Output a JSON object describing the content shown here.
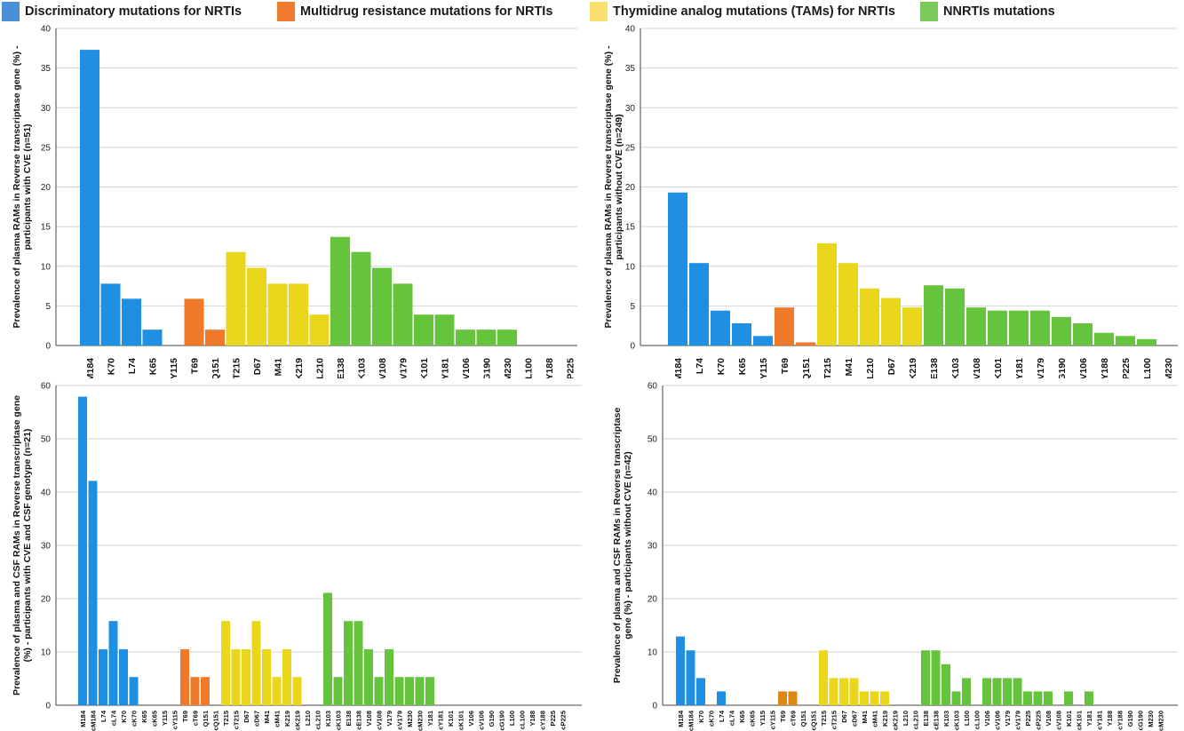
{
  "colors": {
    "discriminatory": "#1f8fe3",
    "multidrug": "#f07a2a",
    "multidrug_alt": "#de8a12",
    "tams": "#ead71c",
    "nnrti": "#66c43c",
    "legend_disc": "#4a90d9",
    "legend_multi": "#f07b2e",
    "legend_tams": "#f8df6e",
    "legend_nnrti": "#7cc95a"
  },
  "legend": [
    {
      "label": "Discriminatory mutations for NRTIs",
      "color_key": "legend_disc"
    },
    {
      "label": "Multidrug resistance mutations for NRTIs",
      "color_key": "legend_multi"
    },
    {
      "label": "Thymidine analog mutations (TAMs) for NRTIs",
      "color_key": "legend_tams"
    },
    {
      "label": "NNRTIs mutations",
      "color_key": "legend_nnrti"
    }
  ],
  "chart_data": [
    {
      "type": "bar",
      "ylabel": [
        "Prevalence of plasma RAMs in Reverse transcriptase gene (%) -",
        "participants with CVE (n=51)"
      ],
      "ylim": [
        0,
        40
      ],
      "yticks": [
        0,
        5,
        10,
        15,
        20,
        25,
        30,
        35,
        40
      ],
      "grid": true,
      "categories": [
        "M184",
        "K70",
        "L74",
        "K65",
        "Y115",
        "T69",
        "Q151",
        "T215",
        "D67",
        "M41",
        "K219",
        "L210",
        "E138",
        "K103",
        "V108",
        "V179",
        "K101",
        "Y181",
        "V106",
        "G190",
        "M230",
        "L100",
        "Y188",
        "P225"
      ],
      "values": [
        37.3,
        7.8,
        5.9,
        2.0,
        0,
        5.9,
        2.0,
        11.8,
        9.8,
        7.8,
        7.8,
        3.9,
        13.7,
        11.8,
        9.8,
        7.8,
        3.9,
        3.9,
        2.0,
        2.0,
        2.0,
        0,
        0,
        0
      ],
      "groups": [
        "discriminatory",
        "discriminatory",
        "discriminatory",
        "discriminatory",
        "discriminatory",
        "multidrug",
        "multidrug",
        "tams",
        "tams",
        "tams",
        "tams",
        "tams",
        "nnrti",
        "nnrti",
        "nnrti",
        "nnrti",
        "nnrti",
        "nnrti",
        "nnrti",
        "nnrti",
        "nnrti",
        "nnrti",
        "nnrti",
        "nnrti"
      ]
    },
    {
      "type": "bar",
      "ylabel": [
        "Prevalence of plasma RAMs in Reverse transcriptase gene (%) -",
        "participants without CVE (n=249)"
      ],
      "ylim": [
        0,
        40
      ],
      "yticks": [
        0,
        5,
        10,
        15,
        20,
        25,
        30,
        35,
        40
      ],
      "grid": true,
      "categories": [
        "M184",
        "L74",
        "K70",
        "K65",
        "Y115",
        "T69",
        "Q151",
        "T215",
        "M41",
        "L210",
        "D67",
        "K219",
        "E138",
        "K103",
        "V108",
        "K101",
        "Y181",
        "V179",
        "G190",
        "V106",
        "Y188",
        "P225",
        "L100",
        "M230"
      ],
      "values": [
        19.3,
        10.4,
        4.4,
        2.8,
        1.2,
        4.8,
        0.4,
        12.9,
        10.4,
        7.2,
        6.0,
        4.8,
        7.6,
        7.2,
        4.8,
        4.4,
        4.4,
        4.4,
        3.6,
        2.8,
        1.6,
        1.2,
        0.8,
        0
      ],
      "groups": [
        "discriminatory",
        "discriminatory",
        "discriminatory",
        "discriminatory",
        "discriminatory",
        "multidrug",
        "multidrug",
        "tams",
        "tams",
        "tams",
        "tams",
        "tams",
        "nnrti",
        "nnrti",
        "nnrti",
        "nnrti",
        "nnrti",
        "nnrti",
        "nnrti",
        "nnrti",
        "nnrti",
        "nnrti",
        "nnrti",
        "nnrti"
      ]
    },
    {
      "type": "bar",
      "ylabel": [
        "Prevalence of plasma and CSF RAMs in Reverse transcriptase gene",
        "(%) - participants with CVE and CSF genotype (n=21)"
      ],
      "ylim": [
        0,
        60
      ],
      "yticks": [
        0,
        10,
        20,
        30,
        40,
        50,
        60
      ],
      "grid": true,
      "categories": [
        "M184",
        "cM184",
        "L74",
        "cL74",
        "K70",
        "cK70",
        "K65",
        "cK65",
        "Y115",
        "cY115",
        "T69",
        "cT69",
        "Q151",
        "cQ151",
        "T215",
        "cT215",
        "D67",
        "cD67",
        "M41",
        "cM41",
        "K219",
        "cK219",
        "L210",
        "cL210",
        "K103",
        "cK103",
        "E138",
        "cE138",
        "V108",
        "cV108",
        "V179",
        "cV179",
        "M230",
        "cM230",
        "Y181",
        "cY181",
        "K101",
        "cK101",
        "V106",
        "cV106",
        "G190",
        "cG190",
        "L100",
        "cL100",
        "Y188",
        "cY188",
        "P225",
        "cP225"
      ],
      "values": [
        57.9,
        42.1,
        10.5,
        15.8,
        10.5,
        5.3,
        0,
        0,
        0,
        0,
        10.5,
        5.3,
        5.3,
        0,
        15.8,
        10.5,
        10.5,
        15.8,
        10.5,
        5.3,
        10.5,
        5.3,
        0,
        0,
        21.1,
        5.3,
        15.8,
        15.8,
        10.5,
        5.3,
        10.5,
        5.3,
        5.3,
        5.3,
        5.3,
        0,
        0,
        0,
        0,
        0,
        0,
        0,
        0,
        0,
        0,
        0,
        0,
        0
      ],
      "groups": [
        "discriminatory",
        "discriminatory",
        "discriminatory",
        "discriminatory",
        "discriminatory",
        "discriminatory",
        "discriminatory",
        "discriminatory",
        "discriminatory",
        "discriminatory",
        "multidrug",
        "multidrug",
        "multidrug",
        "multidrug",
        "tams",
        "tams",
        "tams",
        "tams",
        "tams",
        "tams",
        "tams",
        "tams",
        "tams",
        "tams",
        "nnrti",
        "nnrti",
        "nnrti",
        "nnrti",
        "nnrti",
        "nnrti",
        "nnrti",
        "nnrti",
        "nnrti",
        "nnrti",
        "nnrti",
        "nnrti",
        "nnrti",
        "nnrti",
        "nnrti",
        "nnrti",
        "nnrti",
        "nnrti",
        "nnrti",
        "nnrti",
        "nnrti",
        "nnrti",
        "nnrti",
        "nnrti"
      ]
    },
    {
      "type": "bar",
      "ylabel": [
        "Prevalence of plasma and CSF RAMs in Reverse transcriptase",
        "gene (%) - participants without CVE (n=42)"
      ],
      "ylim": [
        0,
        60
      ],
      "yticks": [
        0,
        10,
        20,
        30,
        40,
        50,
        60
      ],
      "grid": true,
      "categories": [
        "M184",
        "cM184",
        "K70",
        "cK70",
        "L74",
        "cL74",
        "K65",
        "cK65",
        "Y115",
        "cY115",
        "T69",
        "cT69",
        "Q151",
        "cQ151",
        "T215",
        "cT215",
        "D67",
        "cD67",
        "M41",
        "cM41",
        "K219",
        "cK219",
        "L210",
        "cL210",
        "E138",
        "cE138",
        "K103",
        "cK103",
        "L100",
        "cL100",
        "V106",
        "cV106",
        "V179",
        "cV179",
        "P225",
        "cP225",
        "V108",
        "cV108",
        "K101",
        "cK101",
        "Y181",
        "cY181",
        "Y188",
        "cY188",
        "G190",
        "cG190",
        "M230",
        "cM230"
      ],
      "values": [
        12.9,
        10.3,
        5.1,
        0,
        2.6,
        0,
        0,
        0,
        0,
        0,
        2.6,
        2.6,
        0,
        0,
        10.3,
        5.1,
        5.1,
        5.1,
        2.6,
        2.6,
        2.6,
        0,
        0,
        0,
        10.3,
        10.3,
        7.7,
        2.6,
        5.1,
        0,
        5.1,
        5.1,
        5.1,
        5.1,
        2.6,
        2.6,
        2.6,
        0,
        2.6,
        0,
        2.6,
        0,
        0,
        0,
        0,
        0,
        0,
        0
      ],
      "groups": [
        "discriminatory",
        "discriminatory",
        "discriminatory",
        "discriminatory",
        "discriminatory",
        "discriminatory",
        "discriminatory",
        "discriminatory",
        "discriminatory",
        "discriminatory",
        "multidrug_alt",
        "multidrug_alt",
        "multidrug_alt",
        "multidrug_alt",
        "tams",
        "tams",
        "tams",
        "tams",
        "tams",
        "tams",
        "tams",
        "tams",
        "tams",
        "tams",
        "nnrti",
        "nnrti",
        "nnrti",
        "nnrti",
        "nnrti",
        "nnrti",
        "nnrti",
        "nnrti",
        "nnrti",
        "nnrti",
        "nnrti",
        "nnrti",
        "nnrti",
        "nnrti",
        "nnrti",
        "nnrti",
        "nnrti",
        "nnrti",
        "nnrti",
        "nnrti",
        "nnrti",
        "nnrti",
        "nnrti",
        "nnrti"
      ]
    }
  ]
}
